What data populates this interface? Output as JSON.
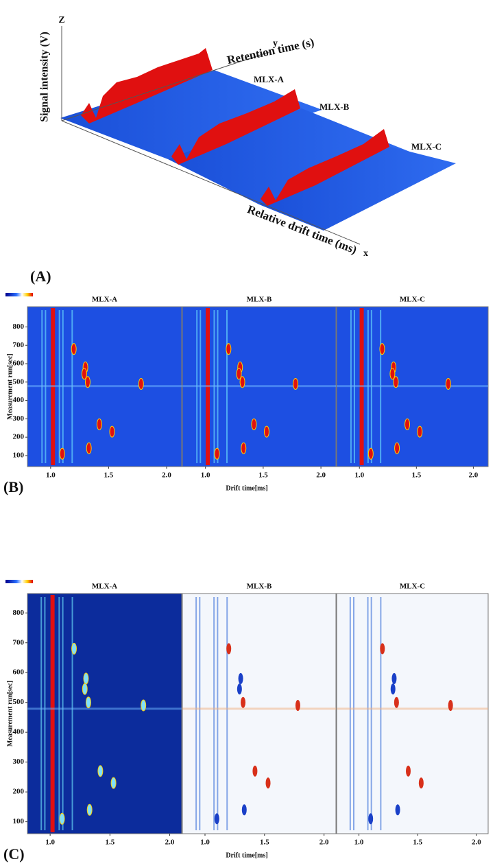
{
  "panel_a": {
    "label": "(A)",
    "z_axis": "Z",
    "z_title": "Signal intensity (V)",
    "y_axis": "y",
    "y_title": "Retention time (s)",
    "x_axis": "x",
    "x_title": "Relative drift time (ms)",
    "samples": [
      "MLX-A",
      "MLX-B",
      "MLX-C"
    ]
  },
  "panel_b": {
    "label": "(B)",
    "titles": [
      "MLX-A",
      "MLX-B",
      "MLX-C"
    ],
    "ylabel": "Measurement run[sec]",
    "xlabel": "Drift time[ms]",
    "ylim": [
      40,
      910
    ],
    "yticks": [
      100,
      200,
      300,
      400,
      500,
      600,
      700,
      800
    ],
    "xlim": [
      0.8,
      2.13
    ],
    "xticks": [
      {
        "value": 1,
        "label": "1.0"
      },
      {
        "value": 1.5,
        "label": "1.5"
      },
      {
        "value": 2,
        "label": "2.0"
      }
    ]
  },
  "panel_c": {
    "label": "(C)",
    "titles": [
      "MLX-A",
      "MLX-B",
      "MLX-C"
    ],
    "ylabel": "Measurement run[sec]",
    "xlabel": "Drift time[ms]",
    "ylim": [
      60,
      865
    ],
    "yticks": [
      100,
      200,
      300,
      400,
      500,
      600,
      700,
      800
    ],
    "xlim": [
      0.81,
      2.1
    ],
    "xticks": [
      {
        "value": 1,
        "label": "1.0"
      },
      {
        "value": 1.5,
        "label": "1.5"
      },
      {
        "value": 2,
        "label": "2.0"
      }
    ]
  }
}
